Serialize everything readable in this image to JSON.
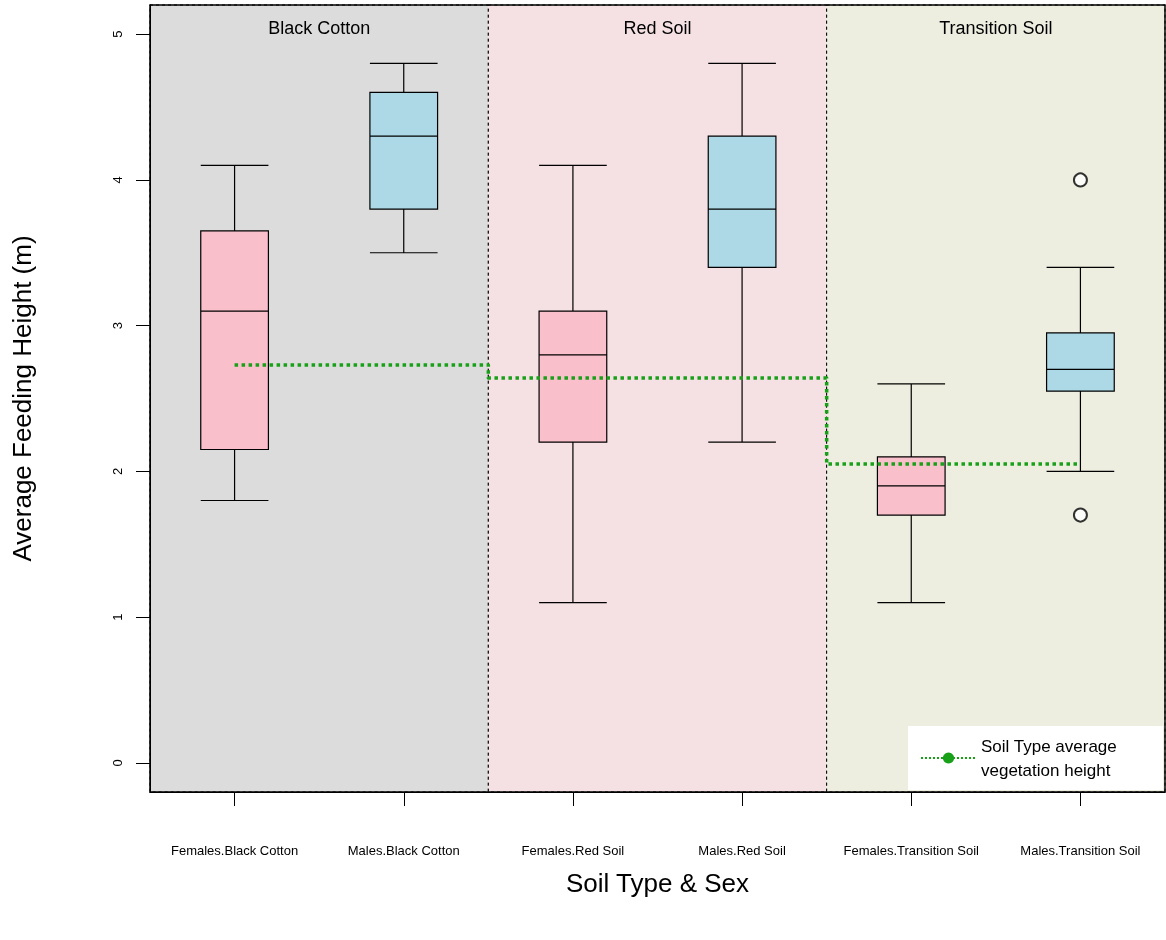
{
  "chart_data": {
    "type": "box",
    "xlabel": "Soil Type & Sex",
    "ylabel": "Average Feeding Height (m)",
    "categories": [
      "Females.Black Cotton",
      "Males.Black Cotton",
      "Females.Red Soil",
      "Males.Red Soil",
      "Females.Transition Soil",
      "Males.Transition Soil"
    ],
    "boxes": [
      {
        "low": 1.8,
        "q1": 2.15,
        "median": 3.1,
        "q3": 3.65,
        "high": 4.1
      },
      {
        "low": 3.5,
        "q1": 3.8,
        "median": 4.3,
        "q3": 4.6,
        "high": 4.8
      },
      {
        "low": 1.1,
        "q1": 2.2,
        "median": 2.8,
        "q3": 3.1,
        "high": 4.1
      },
      {
        "low": 2.2,
        "q1": 3.4,
        "median": 3.8,
        "q3": 4.3,
        "high": 4.8
      },
      {
        "low": 1.1,
        "q1": 1.7,
        "median": 1.9,
        "q3": 2.1,
        "high": 2.6
      },
      {
        "low": 2.0,
        "q1": 2.55,
        "median": 2.7,
        "q3": 2.95,
        "high": 3.4,
        "outliers": [
          4.0,
          1.7
        ]
      }
    ],
    "colors": [
      "#f9bfcb",
      "#add8e6",
      "#f9bfcb",
      "#add8e6",
      "#f9bfcb",
      "#add8e6"
    ],
    "series": [
      {
        "type": "step",
        "name": "Soil Type average vegetation height",
        "color": "#18a018",
        "line_style": "dotted",
        "values": [
          2.73,
          2.73,
          2.64,
          2.64,
          2.05,
          2.05
        ]
      }
    ],
    "bands": [
      {
        "axis": "x",
        "from": "Females.Black Cotton",
        "to": "Males.Black Cotton",
        "label": "Black Cotton",
        "color": "#dcdcdc"
      },
      {
        "axis": "x",
        "from": "Females.Red Soil",
        "to": "Males.Red Soil",
        "label": "Red Soil",
        "color": "#f5e0e3"
      },
      {
        "axis": "x",
        "from": "Females.Transition Soil",
        "to": "Males.Transition Soil",
        "label": "Transition Soil",
        "color": "#eeeee0"
      }
    ],
    "ylim": [
      -0.2,
      5.2
    ],
    "yticks": [
      0,
      1,
      2,
      3,
      4,
      5
    ],
    "legend": "bottom right"
  }
}
